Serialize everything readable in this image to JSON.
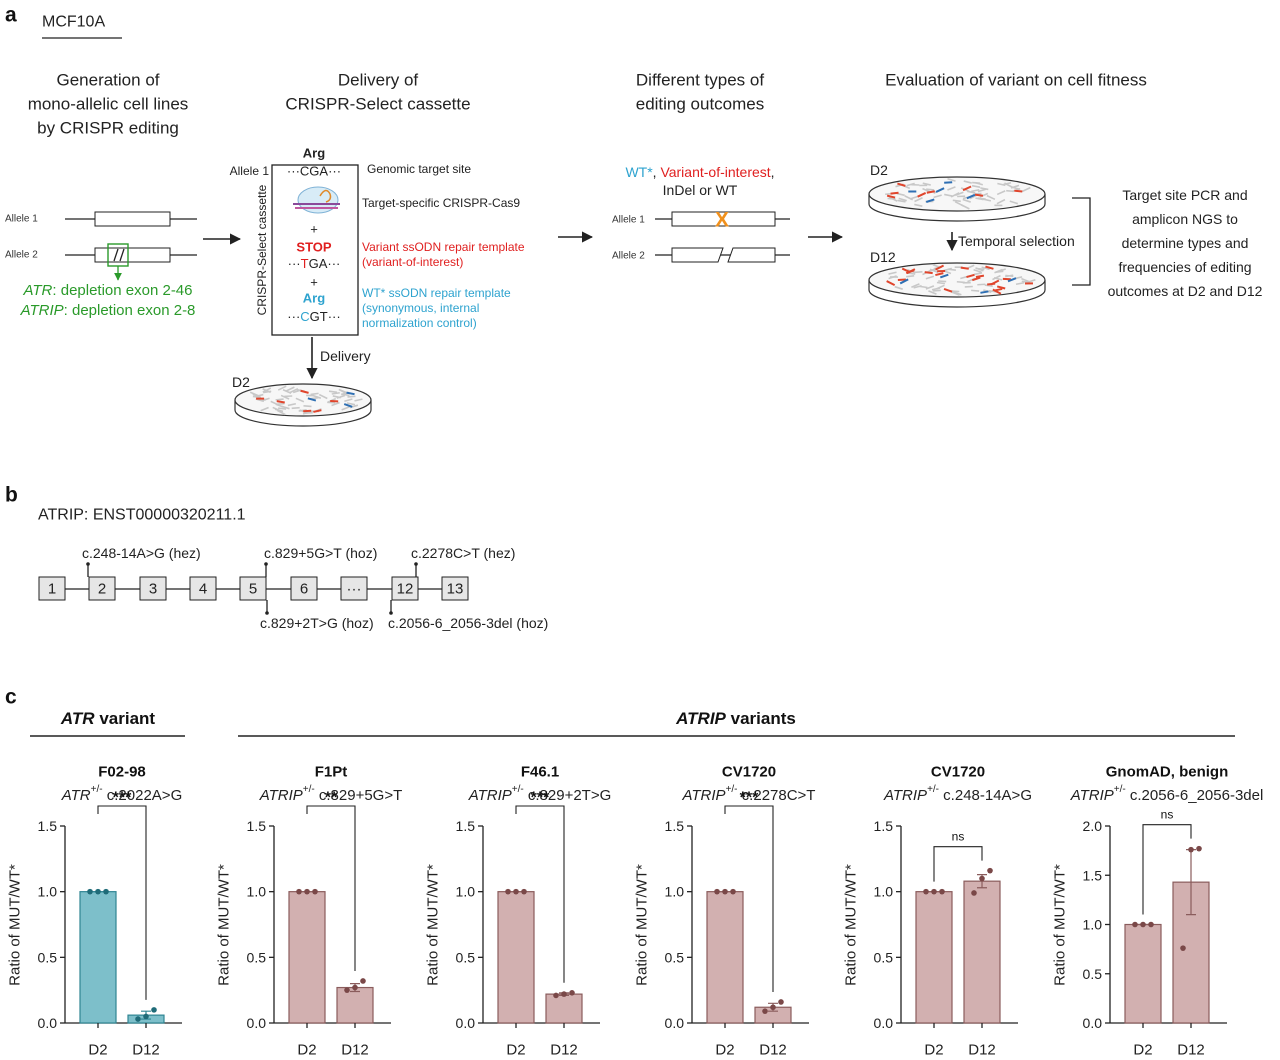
{
  "panel_a": {
    "label": "a",
    "cell_line": "MCF10A",
    "steps": [
      [
        "Generation of",
        "mono-allelic cell lines",
        "by CRISPR editing"
      ],
      [
        "Delivery of",
        "CRISPR-Select cassette"
      ],
      [
        "Different types of",
        "editing outcomes"
      ],
      [
        "Evaluation of variant on cell fitness"
      ]
    ],
    "generation": {
      "allele1": "Allele 1",
      "allele2": "Allele 2",
      "depletions": [
        [
          "ATR",
          ": depletion exon 2-46"
        ],
        [
          "ATRIP",
          ": depletion exon 2-8"
        ]
      ]
    },
    "cassette": {
      "title": "CRISPR-Select cassette",
      "allele": "Allele 1",
      "genomic_aa": "Arg",
      "genomic_codon": "···CGA···",
      "genomic_label": "Genomic target site",
      "cas9_label": "Target-specific CRISPR-Cas9",
      "plus": "+",
      "variant_aa": "STOP",
      "variant_codon": [
        "···",
        "T",
        "GA···"
      ],
      "variant_label": [
        "Variant ssODN repair template",
        "(variant-of-interest)"
      ],
      "wt_aa": "Arg",
      "wt_codon": [
        "···",
        "C",
        "GT···"
      ],
      "wt_label": [
        "WT* ssODN repair template",
        "(synonymous, internal",
        "normalization control)"
      ],
      "delivery": "Delivery",
      "day": "D2"
    },
    "outcomes": {
      "types": [
        "WT*",
        ", ",
        "Variant-of-interest",
        ","
      ],
      "types_line2": "InDel or WT",
      "allele1": "Allele 1",
      "allele2": "Allele 2",
      "mark": "X"
    },
    "evaluation": {
      "day_start": "D2",
      "day_end": "D12",
      "selection": "Temporal selection",
      "readout": [
        "Target site PCR and",
        "amplicon NGS to",
        "determine types and",
        "frequencies of editing",
        "outcomes at D2 and D12"
      ]
    }
  },
  "panel_b": {
    "label": "b",
    "transcript": "ATRIP: ENST00000320211.1",
    "exons": [
      "1",
      "2",
      "3",
      "4",
      "5",
      "6",
      "···",
      "12",
      "13"
    ],
    "variants_above": [
      "c.248-14A>G (hez)",
      "c.829+5G>T (hoz)",
      "c.2278C>T (hez)"
    ],
    "variants_below": [
      "c.829+2T>G (hoz)",
      "c.2056-6_2056-3del (hoz)"
    ]
  },
  "panel_c": {
    "label": "c",
    "groups": [
      [
        "ATR",
        " variant"
      ],
      [
        "ATRIP",
        " variants"
      ]
    ]
  },
  "chart_data": [
    {
      "type": "bar",
      "title": "F02-98",
      "subtitle": [
        "ATR",
        "+/-",
        " c.2022A>G"
      ],
      "ylabel": "Ratio of MUT/WT*",
      "categories": [
        "D2",
        "D12"
      ],
      "values": [
        1.0,
        0.06
      ],
      "errors": [
        0,
        0.03
      ],
      "points": [
        [
          1,
          1,
          1
        ],
        [
          0.03,
          0.05,
          0.1
        ]
      ],
      "significance": "***",
      "color": "#7dbfca",
      "edgecolor": "#2f8593",
      "pointcolor": "#1f6b78",
      "ylim": [
        0,
        1.5
      ],
      "yticks": [
        {
          "value": 0,
          "label": "0.0"
        },
        0.5,
        {
          "value": 1,
          "label": "1.0"
        },
        1.5
      ]
    },
    {
      "type": "bar",
      "title": "F1Pt",
      "subtitle": [
        "ATRIP",
        "+/-",
        " c.829+5G>T"
      ],
      "ylabel": "Ratio of MUT/WT*",
      "categories": [
        "D2",
        "D12"
      ],
      "values": [
        1.0,
        0.27
      ],
      "errors": [
        0,
        0.03
      ],
      "points": [
        [
          1,
          1,
          1
        ],
        [
          0.25,
          0.27,
          0.32
        ]
      ],
      "significance": "**",
      "color": "#d2b0b0",
      "edgecolor": "#8a5c5c",
      "pointcolor": "#7a4848",
      "ylim": [
        0,
        1.5
      ],
      "yticks": [
        {
          "value": 0,
          "label": "0.0"
        },
        0.5,
        {
          "value": 1,
          "label": "1.0"
        },
        1.5
      ]
    },
    {
      "type": "bar",
      "title": "F46.1",
      "subtitle": [
        "ATRIP",
        "+/-",
        " c.829+2T>G"
      ],
      "ylabel": "Ratio of MUT/WT*",
      "categories": [
        "D2",
        "D12"
      ],
      "values": [
        1.0,
        0.22
      ],
      "errors": [
        0,
        0.01
      ],
      "points": [
        [
          1,
          1,
          1
        ],
        [
          0.21,
          0.22,
          0.23
        ]
      ],
      "significance": "***",
      "color": "#d2b0b0",
      "edgecolor": "#8a5c5c",
      "pointcolor": "#7a4848",
      "ylim": [
        0,
        1.5
      ],
      "yticks": [
        {
          "value": 0,
          "label": "0.0"
        },
        0.5,
        {
          "value": 1,
          "label": "1.0"
        },
        1.5
      ]
    },
    {
      "type": "bar",
      "title": "CV1720",
      "subtitle": [
        "ATRIP",
        "+/-",
        " c.2278C>T"
      ],
      "ylabel": "Ratio of MUT/WT*",
      "categories": [
        "D2",
        "D12"
      ],
      "values": [
        1.0,
        0.12
      ],
      "errors": [
        0,
        0.03
      ],
      "points": [
        [
          1,
          1,
          1
        ],
        [
          0.09,
          0.12,
          0.16
        ]
      ],
      "significance": "***",
      "color": "#d2b0b0",
      "edgecolor": "#8a5c5c",
      "pointcolor": "#7a4848",
      "ylim": [
        0,
        1.5
      ],
      "yticks": [
        {
          "value": 0,
          "label": "0.0"
        },
        0.5,
        {
          "value": 1,
          "label": "1.0"
        },
        1.5
      ]
    },
    {
      "type": "bar",
      "title": "CV1720",
      "subtitle": [
        "ATRIP",
        "+/-",
        " c.248-14A>G"
      ],
      "ylabel": "Ratio of MUT/WT*",
      "categories": [
        "D2",
        "D12"
      ],
      "values": [
        1.0,
        1.08
      ],
      "errors": [
        0,
        0.05
      ],
      "points": [
        [
          1,
          1,
          1
        ],
        [
          0.99,
          1.1,
          1.16
        ]
      ],
      "significance": "ns",
      "color": "#d2b0b0",
      "edgecolor": "#8a5c5c",
      "pointcolor": "#7a4848",
      "ylim": [
        0,
        1.5
      ],
      "yticks": [
        {
          "value": 0,
          "label": "0.0"
        },
        0.5,
        {
          "value": 1,
          "label": "1.0"
        },
        1.5
      ]
    },
    {
      "type": "bar",
      "title": "GnomAD, benign",
      "subtitle": [
        "ATRIP",
        "+/-",
        " c.2056-6_2056-3del"
      ],
      "ylabel": "Ratio of MUT/WT*",
      "categories": [
        "D2",
        "D12"
      ],
      "values": [
        1.0,
        1.43
      ],
      "errors": [
        0,
        0.33
      ],
      "points": [
        [
          1,
          1,
          1
        ],
        [
          0.76,
          1.76,
          1.77
        ]
      ],
      "significance": "ns",
      "color": "#d2b0b0",
      "edgecolor": "#8a5c5c",
      "pointcolor": "#7a4848",
      "ylim": [
        0,
        2
      ],
      "yticks": [
        {
          "value": 0,
          "label": "0.0"
        },
        0.5,
        {
          "value": 1,
          "label": "1.0"
        },
        1.5,
        {
          "value": 2,
          "label": "2.0"
        }
      ]
    }
  ]
}
